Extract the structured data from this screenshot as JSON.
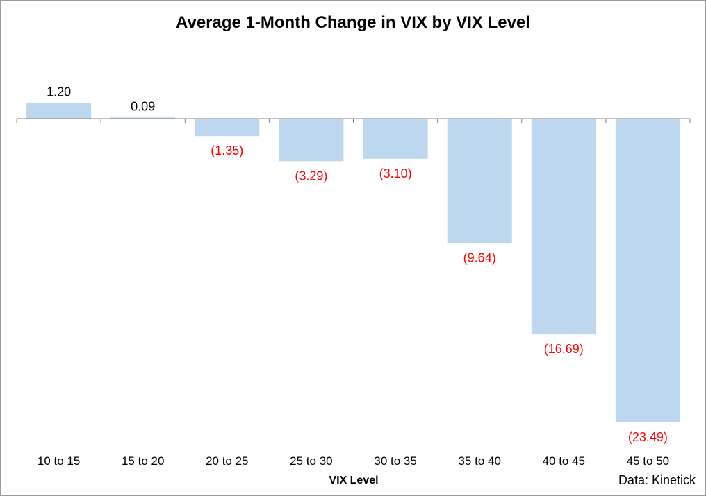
{
  "chart_data": {
    "type": "bar",
    "title": "Average 1-Month Change in VIX by VIX Level",
    "xlabel": "VIX Level",
    "ylabel": "",
    "categories": [
      "10 to 15",
      "15 to 20",
      "20 to 25",
      "25 to 30",
      "30 to 35",
      "35 to 40",
      "40 to 45",
      "45 to 50"
    ],
    "values": [
      1.2,
      0.09,
      -1.35,
      -3.29,
      -3.1,
      -9.64,
      -16.69,
      -23.49
    ],
    "data_labels": [
      "1.20",
      "0.09",
      "(1.35)",
      "(3.29)",
      "(3.10)",
      "(9.64)",
      "(16.69)",
      "(23.49)"
    ],
    "ylim": [
      -23.49,
      1.2
    ],
    "grid": false,
    "legend": "none",
    "colors": {
      "bar": "#bdd7ee",
      "positive_label": "#000000",
      "negative_label": "#ff0000",
      "axis": "#808080"
    }
  },
  "source_note": "Data: Kinetick"
}
